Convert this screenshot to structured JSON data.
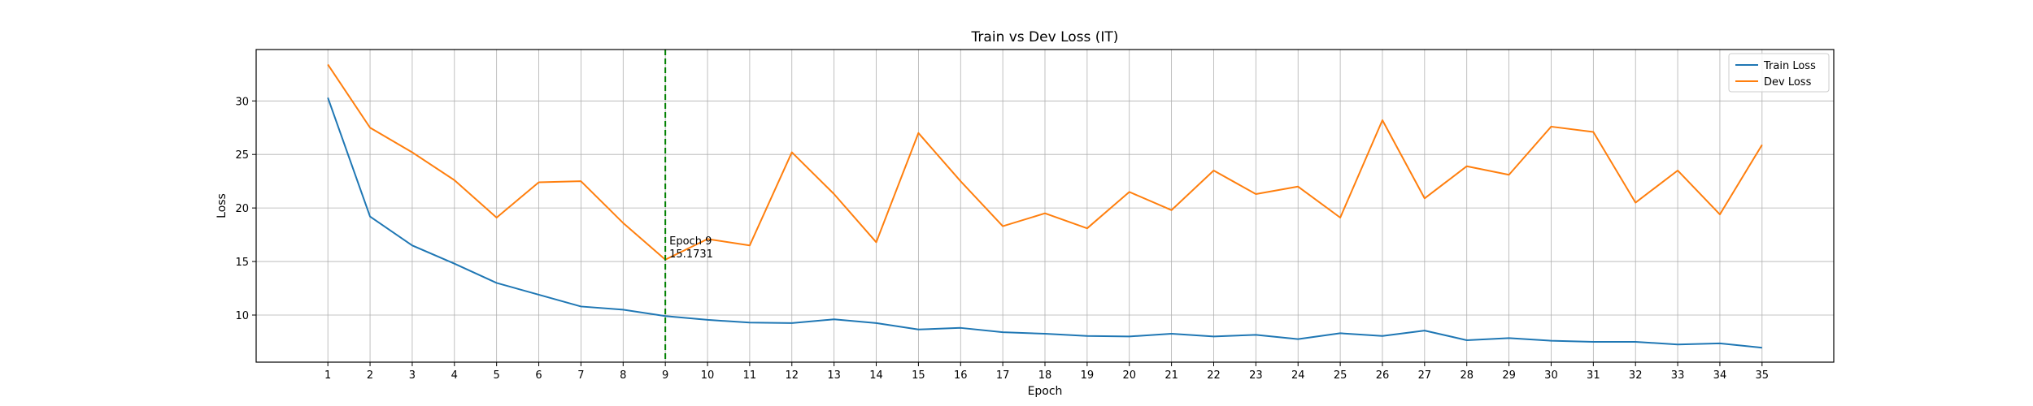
{
  "chart_data": {
    "type": "line",
    "title": "Train vs Dev Loss (IT)",
    "xlabel": "Epoch",
    "ylabel": "Loss",
    "x": [
      1,
      2,
      3,
      4,
      5,
      6,
      7,
      8,
      9,
      10,
      11,
      12,
      13,
      14,
      15,
      16,
      17,
      18,
      19,
      20,
      21,
      22,
      23,
      24,
      25,
      26,
      27,
      28,
      29,
      30,
      31,
      32,
      33,
      34,
      35
    ],
    "x_ticks": [
      "1",
      "2",
      "3",
      "4",
      "5",
      "6",
      "7",
      "8",
      "9",
      "10",
      "11",
      "12",
      "13",
      "14",
      "15",
      "16",
      "17",
      "18",
      "19",
      "20",
      "21",
      "22",
      "23",
      "24",
      "25",
      "26",
      "27",
      "28",
      "29",
      "30",
      "31",
      "32",
      "33",
      "34",
      "35"
    ],
    "y_ticks": [
      10,
      15,
      20,
      25,
      30
    ],
    "y_tick_labels": [
      "10",
      "15",
      "20",
      "25",
      "30"
    ],
    "xlim": [
      -0.7,
      36.7
    ],
    "ylim": [
      5.6,
      34.8
    ],
    "grid": true,
    "legend_position": "top-right",
    "series": [
      {
        "name": "Train Loss",
        "color": "#1f77b4",
        "values": [
          30.3,
          19.2,
          16.5,
          14.8,
          13.0,
          11.9,
          10.8,
          10.5,
          9.9,
          9.55,
          9.3,
          9.25,
          9.6,
          9.25,
          8.65,
          8.8,
          8.4,
          8.25,
          8.05,
          8.0,
          8.25,
          8.0,
          8.15,
          7.75,
          8.3,
          8.05,
          8.55,
          7.65,
          7.85,
          7.6,
          7.5,
          7.5,
          7.25,
          7.35,
          6.95
        ]
      },
      {
        "name": "Dev Loss",
        "color": "#ff7f0e",
        "values": [
          33.4,
          27.5,
          25.2,
          22.6,
          19.1,
          22.4,
          22.5,
          18.6,
          15.1731,
          17.1,
          16.5,
          25.2,
          21.3,
          16.8,
          27.0,
          22.5,
          18.3,
          19.5,
          18.1,
          21.5,
          19.8,
          23.5,
          21.3,
          22.0,
          19.1,
          28.2,
          20.9,
          23.9,
          23.1,
          27.6,
          27.1,
          20.5,
          23.5,
          19.4,
          25.9
        ]
      }
    ],
    "vline": {
      "x": 9,
      "color": "#008000",
      "style": "dashed"
    },
    "annotation": {
      "x": 9,
      "y": 15.1731,
      "lines": [
        "Epoch 9",
        "15.1731"
      ]
    }
  }
}
